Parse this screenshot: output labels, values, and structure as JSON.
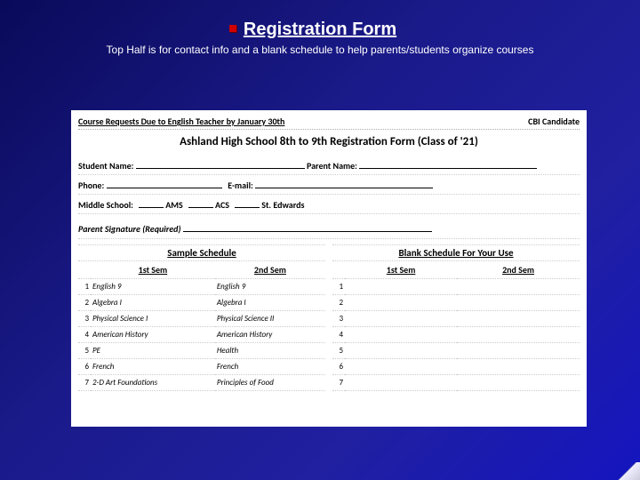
{
  "slide": {
    "title": "Registration Form",
    "subtitle": "Top Half is for contact info and a blank schedule to help parents/students organize courses"
  },
  "form": {
    "due": "Course Requests Due to English Teacher by January 30th",
    "cbi": "CBI Candidate",
    "title": "Ashland High School 8th to 9th Registration Form (Class of '21)",
    "student_label": "Student Name:",
    "parent_label": "Parent Name:",
    "phone_label": "Phone:",
    "email_label": "E-mail:",
    "ms_label": "Middle School:",
    "ms_opts": [
      "AMS",
      "ACS",
      "St. Edwards"
    ],
    "sig_label": "Parent Signature (Required)"
  },
  "sample": {
    "title": "Sample Schedule",
    "h1": "1st Sem",
    "h2": "2nd Sem",
    "rows": [
      {
        "n": "1",
        "a": "English 9",
        "b": "English 9"
      },
      {
        "n": "2",
        "a": "Algebra I",
        "b": "Algebra I"
      },
      {
        "n": "3",
        "a": "Physical Science I",
        "b": "Physical Science II"
      },
      {
        "n": "4",
        "a": "American History",
        "b": "American History"
      },
      {
        "n": "5",
        "a": "PE",
        "b": "Health"
      },
      {
        "n": "6",
        "a": "French",
        "b": "French"
      },
      {
        "n": "7",
        "a": "2-D Art Foundations",
        "b": "Principles of Food"
      }
    ]
  },
  "blank": {
    "title": "Blank Schedule For Your Use",
    "h1": "1st Sem",
    "h2": "2nd Sem",
    "rows": [
      {
        "n": "1"
      },
      {
        "n": "2"
      },
      {
        "n": "3"
      },
      {
        "n": "4"
      },
      {
        "n": "5"
      },
      {
        "n": "6"
      },
      {
        "n": "7"
      }
    ]
  }
}
